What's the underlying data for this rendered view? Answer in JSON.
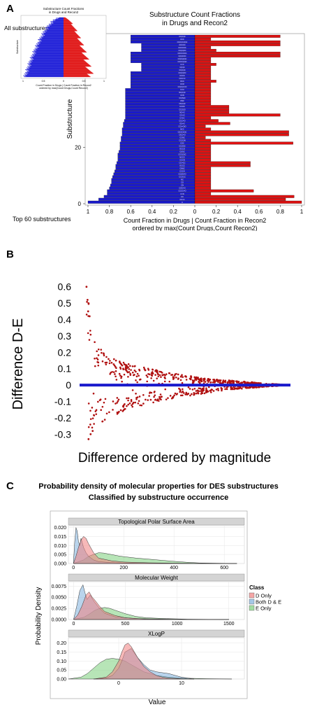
{
  "panels": {
    "a": {
      "letter": "A"
    },
    "b": {
      "letter": "B"
    },
    "c": {
      "letter": "C"
    }
  },
  "chart_data": [
    {
      "type": "bar",
      "panel": "A",
      "title": "Substructure Count Fractions\nin Drugs and Recon2",
      "xlabel": "Count Fraction in Drugs | Count Fraction in Recon2\nordered by max(Count Drugs,Count Recon2)",
      "ylabel": "Substructure",
      "caption": "Top 60 substructures",
      "orientation": "horizontal-diverging",
      "xticks": [
        "1",
        "0.8",
        "0.6",
        "0.4",
        "0.2",
        "0",
        "0.2",
        "0.4",
        "0.6",
        "0.8",
        "1"
      ],
      "yticks": [
        "0",
        "20"
      ],
      "ylim": [
        0,
        60
      ],
      "xlim": [
        -1,
        1
      ],
      "colors": {
        "drugs": "#1a1acc",
        "recon2": "#dd1111"
      },
      "series": [
        {
          "name": "Drugs",
          "values": [
            0.6,
            0.6,
            0.6,
            0.5,
            0.5,
            0.5,
            0.6,
            0.6,
            0.6,
            0.6,
            0.5,
            0.5,
            0.5,
            0.6,
            0.6,
            0.6,
            0.6,
            0.6,
            0.6,
            0.65,
            0.65,
            0.65,
            0.65,
            0.65,
            0.65,
            0.65,
            0.65,
            0.65,
            0.65,
            0.65,
            0.66,
            0.67,
            0.67,
            0.68,
            0.68,
            0.68,
            0.69,
            0.69,
            0.7,
            0.7,
            0.7,
            0.71,
            0.72,
            0.72,
            0.72,
            0.73,
            0.74,
            0.74,
            0.75,
            0.76,
            0.77,
            0.78,
            0.78,
            0.79,
            0.8,
            0.82,
            0.82,
            0.85,
            0.9,
            1.0
          ]
        },
        {
          "name": "Recon2",
          "values": [
            0.8,
            0.15,
            0.8,
            0.8,
            0.15,
            0.2,
            0.8,
            0.8,
            0.15,
            0.15,
            0.2,
            0.15,
            0.15,
            0.15,
            0.15,
            0.15,
            0.2,
            0.15,
            0.15,
            0.15,
            0.15,
            0.15,
            0.15,
            0.15,
            0.15,
            0.32,
            0.32,
            0.32,
            0.8,
            0.15,
            0.22,
            0.33,
            0.1,
            0.15,
            0.88,
            0.88,
            0.1,
            0.15,
            0.92,
            0.15,
            0.15,
            0.15,
            0.15,
            0.15,
            0.15,
            0.52,
            0.52,
            0.15,
            0.15,
            0.15,
            0.15,
            0.15,
            0.15,
            0.15,
            0.15,
            0.55,
            0.15,
            0.93,
            0.85,
            1.0
          ]
        }
      ],
      "row_labels": [
        "CC(C)C",
        "CCC",
        "CC(C)C(C)C",
        "CCCCC",
        "CCCCCC",
        "CC(C)CC",
        "CCCCCCC",
        "C(C)CCC",
        "CC(C)(C)C",
        "CCCC(C)C",
        "C=C",
        "C(C)C",
        "CC(C)C",
        "CC(C)CC",
        "CCCC",
        "CCC=C",
        "OCC",
        "CCO",
        "CC(C)C=O",
        "C=O",
        "NC(C)C",
        "CCN",
        "CC(N)C",
        "CNC",
        "OC(C)C",
        "CCOC",
        "CC(C)O",
        "NC=O",
        "CC=O",
        "C=CC",
        "CCC=O",
        "OC=O",
        "CC(=O)O",
        "NCC",
        "C(C)C(C)C",
        "OCC=O",
        "CCNC",
        "CC(C)N",
        "COC",
        "CC(O)C",
        "OCCO",
        "C(O)C",
        "CCC(C)C",
        "NCCC",
        "CCCN",
        "CC=CC",
        "OCCC",
        "C(N)C",
        "CCCO",
        "CC(O)=O",
        "CCOCC",
        "NC",
        "CO",
        "CN",
        "COC=O",
        "CCCC=O",
        "C=N",
        "CC",
        "CC=C",
        "C"
      ],
      "inset": {
        "title": "Substructure Count Fractions\nin Drugs and Recon2",
        "caption": "All substructures.",
        "xlabel": "Count Fraction in Drugs | Count Fraction in Recon2\nordered by max(Count Drugs,Count Recon2)",
        "ylabel": "Substructure",
        "xticks": [
          "1",
          "0.5",
          "0",
          "0.5",
          "1"
        ]
      }
    },
    {
      "type": "scatter",
      "panel": "B",
      "xlabel": "Difference ordered by magnitude",
      "ylabel": "Difference D-E",
      "yticks": [
        "0.6",
        "0.5",
        "0.4",
        "0.3",
        "0.2",
        "0.1",
        "0",
        "-0.1",
        "-0.2",
        "-0.3"
      ],
      "ylim": [
        -0.35,
        0.65
      ],
      "point_color": "#b01010",
      "zero_line_color": "#1a1acc",
      "envelope": {
        "upper": [
          [
            0.02,
            0.62
          ],
          [
            0.05,
            0.3
          ],
          [
            0.1,
            0.2
          ],
          [
            0.2,
            0.14
          ],
          [
            0.3,
            0.11
          ],
          [
            0.4,
            0.08
          ],
          [
            0.5,
            0.06
          ],
          [
            0.6,
            0.04
          ],
          [
            0.7,
            0.03
          ],
          [
            0.8,
            0.02
          ],
          [
            0.9,
            0.01
          ],
          [
            1.0,
            0.0
          ]
        ],
        "lower": [
          [
            0.02,
            -0.34
          ],
          [
            0.05,
            -0.28
          ],
          [
            0.1,
            -0.22
          ],
          [
            0.2,
            -0.16
          ],
          [
            0.3,
            -0.12
          ],
          [
            0.4,
            -0.09
          ],
          [
            0.5,
            -0.07
          ],
          [
            0.6,
            -0.05
          ],
          [
            0.7,
            -0.03
          ],
          [
            0.8,
            -0.02
          ],
          [
            0.9,
            -0.01
          ],
          [
            1.0,
            0.0
          ]
        ]
      },
      "n_points": 700
    },
    {
      "type": "area",
      "panel": "C",
      "title": "Probability density of molecular properties for DES substructures\nClassified by substructure occurrence",
      "xlabel": "Value",
      "ylabel": "Probability Density",
      "legend": {
        "title": "Class",
        "position": "right",
        "entries": [
          {
            "name": "D Only",
            "color": "#f08080"
          },
          {
            "name": "Both D & E",
            "color": "#7fb0dd"
          },
          {
            "name": "E Only",
            "color": "#7ccf7c"
          }
        ]
      },
      "facets": [
        {
          "title": "Topological Polar Surface Area",
          "xticks": [
            "0",
            "200",
            "400",
            "600"
          ],
          "xlim": [
            -20,
            680
          ],
          "yticks": [
            "0.000",
            "0.005",
            "0.010",
            "0.015",
            "0.020"
          ],
          "ylim": [
            0,
            0.021
          ],
          "series": [
            {
              "name": "D Only",
              "x": [
                0,
                10,
                20,
                30,
                40,
                50,
                60,
                80,
                100,
                150,
                200,
                300,
                400,
                500,
                650
              ],
              "y": [
                0,
                0.004,
                0.009,
                0.013,
                0.015,
                0.014,
                0.011,
                0.006,
                0.003,
                0.0015,
                0.0008,
                0.0004,
                0.0002,
                0.0001,
                0
              ]
            },
            {
              "name": "Both D & E",
              "x": [
                0,
                5,
                10,
                15,
                20,
                25,
                30,
                40,
                50,
                60,
                80,
                100,
                150,
                200,
                400,
                650
              ],
              "y": [
                0,
                0.012,
                0.02,
                0.018,
                0.012,
                0.01,
                0.014,
                0.009,
                0.006,
                0.004,
                0.002,
                0.001,
                0.0005,
                0.0003,
                0.0001,
                0
              ]
            },
            {
              "name": "E Only",
              "x": [
                0,
                20,
                40,
                60,
                80,
                100,
                120,
                150,
                180,
                200,
                250,
                300,
                350,
                400,
                450,
                500,
                650
              ],
              "y": [
                0,
                0.001,
                0.002,
                0.004,
                0.005,
                0.006,
                0.0058,
                0.005,
                0.0042,
                0.0038,
                0.003,
                0.0024,
                0.0018,
                0.0012,
                0.0007,
                0.0003,
                0
              ]
            }
          ]
        },
        {
          "title": "Molecular Weight",
          "xticks": [
            "0",
            "500",
            "1000",
            "1500"
          ],
          "xlim": [
            -50,
            1650
          ],
          "yticks": [
            "0.0000",
            "0.0025",
            "0.0050",
            "0.0075"
          ],
          "ylim": [
            0,
            0.0085
          ],
          "series": [
            {
              "name": "D Only",
              "x": [
                0,
                40,
                80,
                120,
                150,
                180,
                200,
                250,
                300,
                400,
                500,
                700,
                1000,
                1500
              ],
              "y": [
                0,
                0.001,
                0.003,
                0.0055,
                0.0062,
                0.005,
                0.0045,
                0.003,
                0.0018,
                0.0009,
                0.0004,
                0.0001,
                5e-05,
                0
              ]
            },
            {
              "name": "Both D & E",
              "x": [
                0,
                30,
                60,
                90,
                110,
                130,
                160,
                200,
                250,
                300,
                400,
                600,
                1000,
                1500
              ],
              "y": [
                0,
                0.003,
                0.0065,
                0.0078,
                0.006,
                0.0045,
                0.0055,
                0.004,
                0.0025,
                0.0014,
                0.0006,
                0.0002,
                5e-05,
                0
              ]
            },
            {
              "name": "E Only",
              "x": [
                0,
                100,
                150,
                200,
                250,
                300,
                350,
                400,
                450,
                500,
                600,
                700,
                900,
                1100,
                1500
              ],
              "y": [
                0,
                0.0005,
                0.0012,
                0.002,
                0.0025,
                0.0027,
                0.0025,
                0.0021,
                0.0017,
                0.0013,
                0.0007,
                0.0004,
                0.0002,
                8e-05,
                0
              ]
            }
          ]
        },
        {
          "title": "XLogP",
          "xticks": [
            "0",
            "10"
          ],
          "xlim": [
            -8,
            20
          ],
          "yticks": [
            "0.00",
            "0.05",
            "0.10",
            "0.15",
            "0.20"
          ],
          "ylim": [
            0,
            0.23
          ],
          "series": [
            {
              "name": "D Only",
              "x": [
                -4,
                -2,
                -1,
                0,
                0.5,
                1,
                1.5,
                2,
                3,
                4,
                5,
                6,
                7,
                8,
                10,
                12
              ],
              "y": [
                0,
                0.01,
                0.04,
                0.1,
                0.15,
                0.19,
                0.2,
                0.18,
                0.12,
                0.07,
                0.04,
                0.02,
                0.01,
                0.005,
                0.002,
                0
              ]
            },
            {
              "name": "Both D & E",
              "x": [
                -4,
                -2,
                -1,
                0,
                0.5,
                1,
                2,
                3,
                4,
                5,
                6,
                7,
                8,
                9,
                10,
                12
              ],
              "y": [
                0,
                0.005,
                0.02,
                0.06,
                0.1,
                0.15,
                0.17,
                0.12,
                0.08,
                0.05,
                0.04,
                0.035,
                0.03,
                0.02,
                0.01,
                0
              ]
            },
            {
              "name": "E Only",
              "x": [
                -8,
                -6,
                -5,
                -4,
                -3,
                -2,
                -1,
                0,
                1,
                2,
                3,
                4,
                6,
                8,
                10,
                14,
                18
              ],
              "y": [
                0,
                0.01,
                0.03,
                0.06,
                0.09,
                0.11,
                0.115,
                0.11,
                0.1,
                0.08,
                0.06,
                0.04,
                0.02,
                0.01,
                0.005,
                0.002,
                0
              ]
            }
          ]
        }
      ]
    }
  ]
}
